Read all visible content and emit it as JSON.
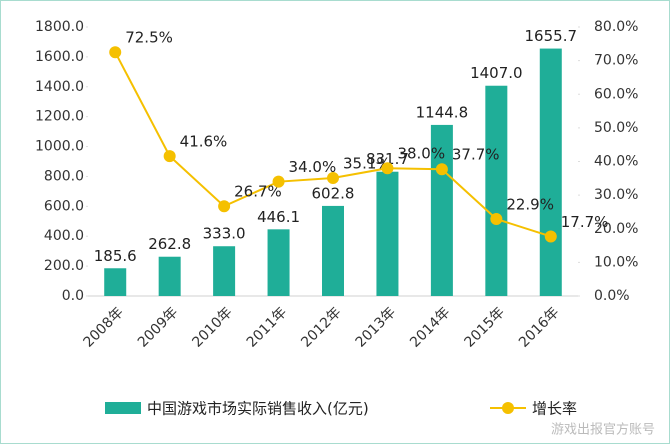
{
  "chart_data": {
    "type": "bar-line",
    "categories": [
      "2008年",
      "2009年",
      "2010年",
      "2011年",
      "2012年",
      "2013年",
      "2014年",
      "2015年",
      "2016年"
    ],
    "series": [
      {
        "name": "中国游戏市场实际销售收入(亿元)",
        "type": "bar",
        "color": "#1fae98",
        "values": [
          185.6,
          262.8,
          333.0,
          446.1,
          602.8,
          831.7,
          1144.8,
          1407.0,
          1655.7
        ],
        "value_labels": [
          "185.6",
          "262.8",
          "333.0",
          "446.1",
          "602.8",
          "831.7",
          "1144.8",
          "1407.0",
          "1655.7"
        ]
      },
      {
        "name": "增长率",
        "type": "line",
        "axis": "y2",
        "color": "#f5c000",
        "values": [
          72.5,
          41.6,
          26.7,
          34.0,
          35.1,
          38.0,
          37.7,
          22.9,
          17.7
        ],
        "value_labels": [
          "72.5%",
          "41.6%",
          "26.7%",
          "34.0%",
          "35.1%",
          "38.0%",
          "37.7%",
          "22.9%",
          "17.7%"
        ]
      }
    ],
    "ylim": [
      0,
      1800
    ],
    "yticks": [
      {
        "value": 0,
        "label": "0.0"
      },
      {
        "value": 200,
        "label": "200.0"
      },
      {
        "value": 400,
        "label": "400.0"
      },
      {
        "value": 600,
        "label": "600.0"
      },
      {
        "value": 800,
        "label": "800.0"
      },
      {
        "value": 1000,
        "label": "1000.0"
      },
      {
        "value": 1200,
        "label": "1200.0"
      },
      {
        "value": 1400,
        "label": "1400.0"
      },
      {
        "value": 1600,
        "label": "1600.0"
      },
      {
        "value": 1800,
        "label": "1800.0"
      }
    ],
    "y2lim": [
      0,
      80
    ],
    "y2ticks": [
      {
        "value": 0,
        "label": "0.0%"
      },
      {
        "value": 10,
        "label": "10.0%"
      },
      {
        "value": 20,
        "label": "20.0%"
      },
      {
        "value": 30,
        "label": "30.0%"
      },
      {
        "value": 40,
        "label": "40.0%"
      },
      {
        "value": 50,
        "label": "50.0%"
      },
      {
        "value": 60,
        "label": "60.0%"
      },
      {
        "value": 70,
        "label": "70.0%"
      },
      {
        "value": 80,
        "label": "80.0%"
      }
    ],
    "legend": "bottom",
    "watermark": "游戏出报官方账号"
  }
}
